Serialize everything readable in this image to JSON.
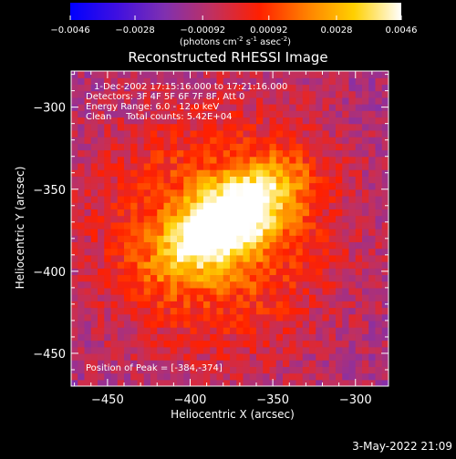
{
  "chart_data": {
    "type": "heatmap",
    "title": "Reconstructed RHESSI Image",
    "xlabel": "Heliocentric X (arcsec)",
    "ylabel": "Heliocentric Y (arcsec)",
    "xlim": [
      -472,
      -280
    ],
    "ylim": [
      -470,
      -278
    ],
    "xticks": [
      -450,
      -400,
      -350,
      -300
    ],
    "yticks": [
      -450,
      -400,
      -350,
      -300
    ],
    "colorbar": {
      "range": [
        -0.0046,
        0.0046
      ],
      "ticks": [
        -0.0046,
        -0.0028,
        -0.00092,
        0.00092,
        0.0028,
        0.0046
      ],
      "tick_labels": [
        "-0.0046",
        "-0.0028",
        "-0.00092",
        "0.00092",
        "0.0028",
        "0.0046"
      ],
      "label_parts": [
        "(photons cm",
        "-2",
        " s",
        "-1",
        " asec",
        "-2",
        ")"
      ],
      "colors": [
        "#0000ff",
        "#4010e0",
        "#8030b0",
        "#c03060",
        "#ff2000",
        "#ff8000",
        "#ffd000",
        "#ffffff"
      ]
    },
    "annotations": [
      "1-Dec-2002 17:15:16.000 to 17:21:16.000",
      "Detectors: 3F 4F 5F 6F 7F 8F, Att 0",
      "Energy Range: 6.0 - 12.0 keV",
      "Clean     Total counts: 5.42E+04"
    ],
    "peak_label": "Position of Peak = [-384,-374]",
    "peak": [
      -384,
      -374
    ],
    "peak_value": 0.0046,
    "source_angle_deg": -35,
    "background_value": -0.0012
  },
  "footer": {
    "timestamp": "3-May-2022 21:09"
  }
}
